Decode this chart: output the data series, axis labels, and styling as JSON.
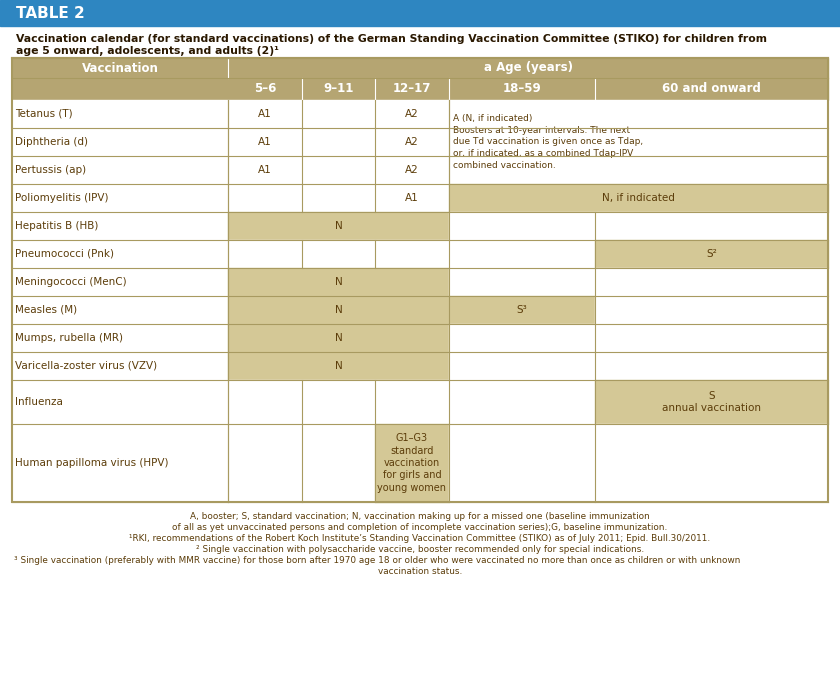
{
  "title_bar_text": "TABLE 2",
  "title_bar_bg": "#2e86c1",
  "subtitle_line1": "Vaccination calendar (for standard vaccinations) of the German Standing Vaccination Committee (STIKO) for children from",
  "subtitle_line2": "age 5 onward, adolescents, and adults (2)¹",
  "header_bg": "#b5a572",
  "cell_bg_tan": "#d4c896",
  "cell_bg_white": "#ffffff",
  "border_color": "#a89a60",
  "text_color": "#5c3d0a",
  "header_text_color": "#ffffff",
  "col_header": "Vaccination",
  "age_header": "a Age (years)",
  "age_cols": [
    "5–6",
    "9–11",
    "12–17",
    "18–59",
    "60 and onward"
  ],
  "footnotes": [
    [
      "center",
      "A, booster; S, standard vaccination; N, vaccination making up for a missed one (baseline immunization"
    ],
    [
      "center",
      "of all as yet unvaccinated persons and completion of incomplete vaccination series);G, baseline immunization."
    ],
    [
      "center",
      "¹RKI, recommendations of the Robert Koch Institute’s Standing Vaccination Committee (STIKO) as of July 2011; Epid. Bull.30/2011."
    ],
    [
      "center",
      "² Single vaccination with polysaccharide vaccine, booster recommended only for special indications."
    ],
    [
      "left",
      "³ Single vaccination (preferably with MMR vaccine) for those born after 1970 age 18 or older who were vaccinated no more than once as children or with unknown"
    ],
    [
      "center",
      "vaccination status."
    ]
  ]
}
